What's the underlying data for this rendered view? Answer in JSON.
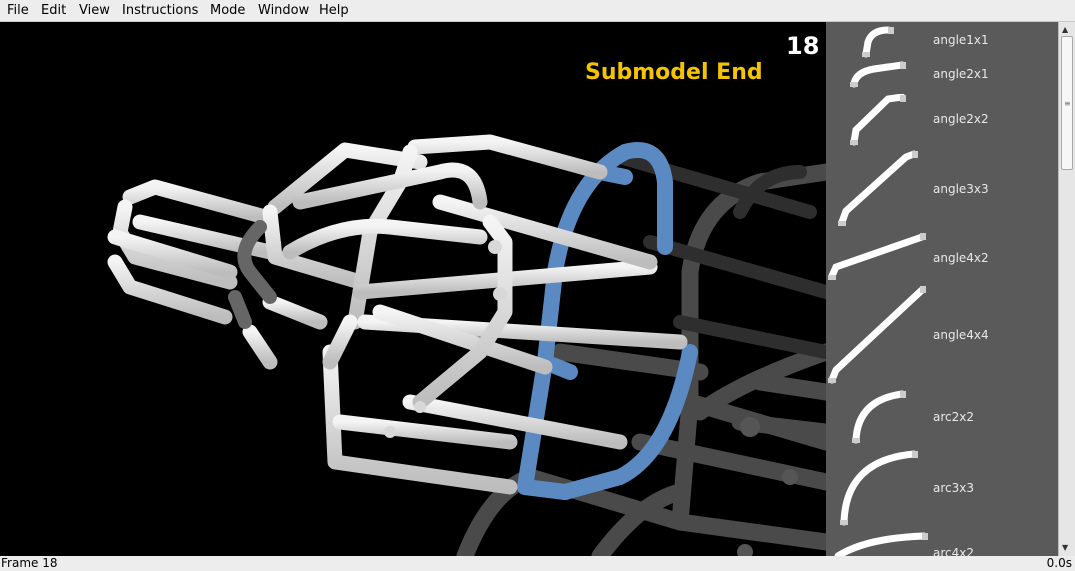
{
  "menu": {
    "file": "File",
    "edit": "Edit",
    "view": "View",
    "instructions": "Instructions",
    "mode": "Mode",
    "window": "Window",
    "help": "Help"
  },
  "viewport": {
    "step_number": "18",
    "submodel_label": "Submodel End",
    "accent_color": "#f5c400",
    "highlight_color": "#5b8ac3"
  },
  "parts": [
    {
      "label": "angle1x1"
    },
    {
      "label": "angle2x1"
    },
    {
      "label": "angle2x2"
    },
    {
      "label": "angle3x3"
    },
    {
      "label": "angle4x2"
    },
    {
      "label": "angle4x4"
    },
    {
      "label": "arc2x2"
    },
    {
      "label": "arc3x3"
    },
    {
      "label": "arc4x2"
    }
  ],
  "status": {
    "frame": "Frame 18",
    "time": "0.0s"
  }
}
